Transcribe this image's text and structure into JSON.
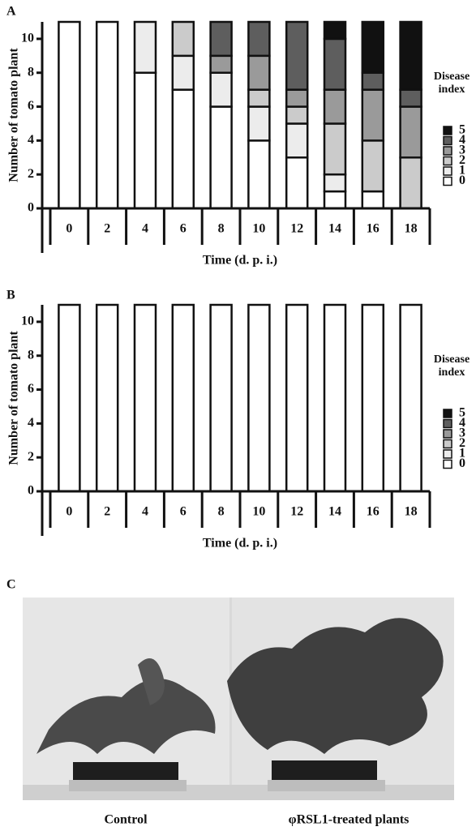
{
  "chart_data": [
    {
      "type": "stacked-bar",
      "panel": "A",
      "y_label": "Number of tomato plant",
      "x_label": "Time (d. p. i.)",
      "categories": [
        "0",
        "2",
        "4",
        "6",
        "8",
        "10",
        "12",
        "14",
        "16",
        "18"
      ],
      "legend_title": "Disease index",
      "series": [
        {
          "name": "0",
          "color": "#ffffff",
          "values": [
            11,
            11,
            8,
            7,
            6,
            4,
            3,
            1,
            1,
            0
          ]
        },
        {
          "name": "1",
          "color": "#ececec",
          "values": [
            0,
            0,
            3,
            2,
            2,
            2,
            2,
            1,
            0,
            0
          ]
        },
        {
          "name": "2",
          "color": "#cbcbcb",
          "values": [
            0,
            0,
            0,
            2,
            0,
            1,
            1,
            3,
            3,
            3
          ]
        },
        {
          "name": "3",
          "color": "#9a9a9a",
          "values": [
            0,
            0,
            0,
            0,
            1,
            2,
            1,
            2,
            3,
            3
          ]
        },
        {
          "name": "4",
          "color": "#5e5e5e",
          "values": [
            0,
            0,
            0,
            0,
            2,
            2,
            4,
            3,
            1,
            1
          ]
        },
        {
          "name": "5",
          "color": "#111111",
          "values": [
            0,
            0,
            0,
            0,
            0,
            0,
            0,
            1,
            3,
            4
          ]
        }
      ],
      "ylim": [
        0,
        11
      ],
      "yticks": [
        0,
        2,
        4,
        6,
        8,
        10
      ]
    },
    {
      "type": "stacked-bar",
      "panel": "B",
      "y_label": "Number of tomato plant",
      "x_label": "Time (d. p. i.)",
      "categories": [
        "0",
        "2",
        "4",
        "6",
        "8",
        "10",
        "12",
        "14",
        "16",
        "18"
      ],
      "legend_title": "Disease index",
      "series": [
        {
          "name": "0",
          "color": "#ffffff",
          "values": [
            11,
            11,
            11,
            11,
            11,
            11,
            11,
            11,
            11,
            11
          ]
        },
        {
          "name": "1",
          "color": "#ececec",
          "values": [
            0,
            0,
            0,
            0,
            0,
            0,
            0,
            0,
            0,
            0
          ]
        },
        {
          "name": "2",
          "color": "#cbcbcb",
          "values": [
            0,
            0,
            0,
            0,
            0,
            0,
            0,
            0,
            0,
            0
          ]
        },
        {
          "name": "3",
          "color": "#9a9a9a",
          "values": [
            0,
            0,
            0,
            0,
            0,
            0,
            0,
            0,
            0,
            0
          ]
        },
        {
          "name": "4",
          "color": "#5e5e5e",
          "values": [
            0,
            0,
            0,
            0,
            0,
            0,
            0,
            0,
            0,
            0
          ]
        },
        {
          "name": "5",
          "color": "#111111",
          "values": [
            0,
            0,
            0,
            0,
            0,
            0,
            0,
            0,
            0,
            0
          ]
        }
      ],
      "ylim": [
        0,
        11
      ],
      "yticks": [
        0,
        2,
        4,
        6,
        8,
        10
      ]
    }
  ],
  "photo": {
    "panel": "C",
    "captions": [
      "Control",
      "φRSL1-treated plants"
    ]
  }
}
